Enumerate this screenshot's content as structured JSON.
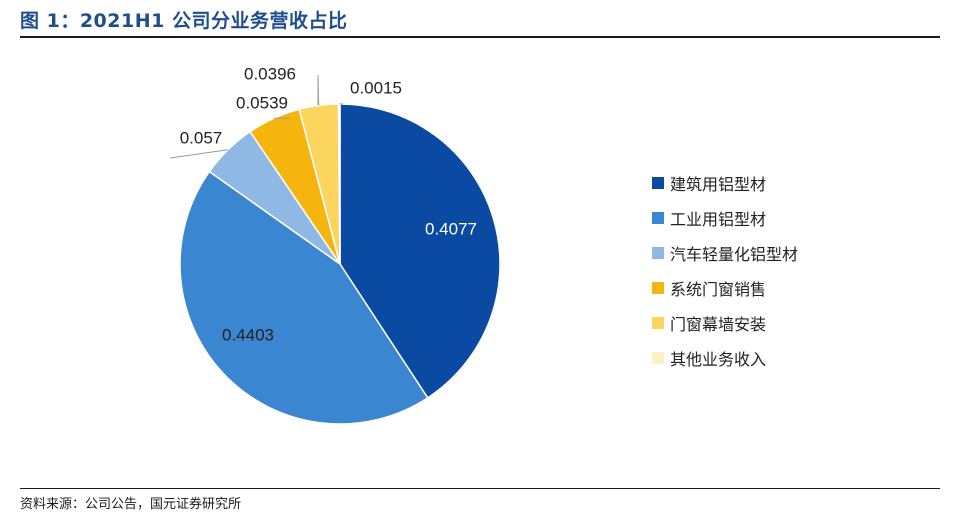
{
  "figure": {
    "title": "图 1：2021H1 公司分业务营收占比",
    "source": "资料来源：公司公告，国元证券研究所"
  },
  "chart_data": {
    "type": "pie",
    "categories": [
      "建筑用铝型材",
      "工业用铝型材",
      "汽车轻量化铝型材",
      "系统门窗销售",
      "门窗幕墙安装",
      "其他业务收入"
    ],
    "values": [
      0.4077,
      0.4403,
      0.057,
      0.0539,
      0.0396,
      0.0015
    ],
    "data_labels": [
      "0.4077",
      "0.4403",
      "0.057",
      "0.0539",
      "0.0396",
      "0.0015"
    ],
    "colors": [
      "#0b4aa2",
      "#3a86d0",
      "#8fb9e4",
      "#f5b50e",
      "#fcd55f",
      "#fdf0c4"
    ],
    "legend_position": "right",
    "start_angle": "12 o'clock",
    "direction": "clockwise"
  }
}
